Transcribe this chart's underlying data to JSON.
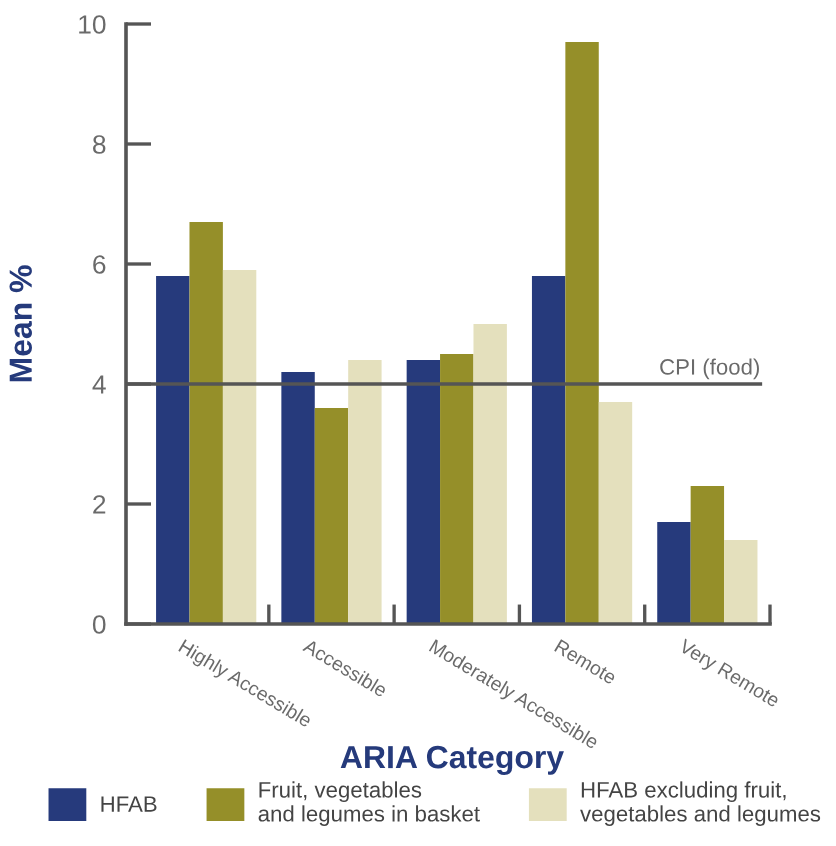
{
  "chart_data": {
    "type": "bar",
    "xlabel": "ARIA Category",
    "ylabel": "Mean %",
    "categories": [
      "Highly Accessible",
      "Accessible",
      "Moderately Accessible",
      "Remote",
      "Very Remote"
    ],
    "series": [
      {
        "name": "HFAB",
        "color": "#263a7c",
        "values": [
          5.8,
          4.2,
          4.4,
          5.8,
          1.7
        ]
      },
      {
        "name": "Fruit, vegetables\nand legumes in basket",
        "color": "#958f29",
        "values": [
          6.7,
          3.6,
          4.5,
          9.7,
          2.3
        ]
      },
      {
        "name": "HFAB excluding fruit,\nvegetables and legumes",
        "color": "#e4e0bd",
        "values": [
          5.9,
          4.4,
          5.0,
          3.7,
          1.4
        ]
      }
    ],
    "ylim": [
      0,
      10
    ],
    "yticks": [
      0,
      2,
      4,
      6,
      8,
      10
    ],
    "ref_lines": [
      {
        "axis": "y",
        "value": 4,
        "label": "CPI (food)",
        "color": "#555555"
      }
    ],
    "legend": "bottom",
    "grid": false
  }
}
